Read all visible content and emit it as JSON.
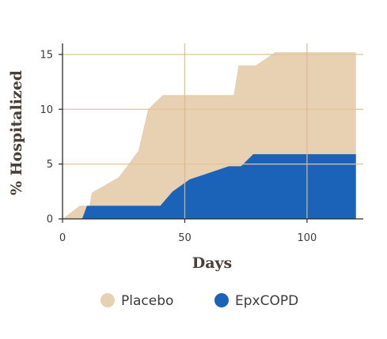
{
  "chart_data": {
    "type": "area",
    "title": "",
    "xlabel": "Days",
    "ylabel": "% Hospitalized",
    "xlim": [
      0,
      123
    ],
    "ylim": [
      0,
      16
    ],
    "x_ticks": [
      0,
      50,
      100
    ],
    "y_ticks": [
      0,
      5,
      10,
      15
    ],
    "grid": true,
    "legend_position": "bottom",
    "series": [
      {
        "name": "Placebo",
        "color": "#e8d0b3",
        "points": [
          [
            0,
            0
          ],
          [
            7,
            1.2
          ],
          [
            11,
            1.2
          ],
          [
            12,
            2.4
          ],
          [
            23,
            3.8
          ],
          [
            31,
            6.2
          ],
          [
            35,
            10
          ],
          [
            41,
            11.3
          ],
          [
            70,
            11.3
          ],
          [
            72,
            14
          ],
          [
            79,
            14
          ],
          [
            87,
            15.2
          ],
          [
            120,
            15.2
          ]
        ]
      },
      {
        "name": "EpxCOPD",
        "color": "#1a63b8",
        "points": [
          [
            0,
            0
          ],
          [
            8,
            0
          ],
          [
            10,
            1.2
          ],
          [
            40,
            1.2
          ],
          [
            45,
            2.5
          ],
          [
            52,
            3.6
          ],
          [
            68,
            4.8
          ],
          [
            73,
            4.8
          ],
          [
            78,
            5.9
          ],
          [
            120,
            5.9
          ]
        ]
      }
    ]
  }
}
